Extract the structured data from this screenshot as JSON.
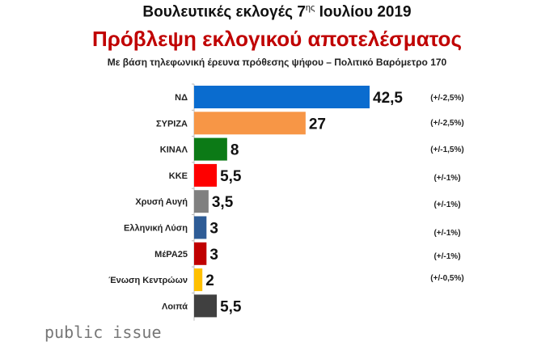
{
  "title": "Βουλευτικές εκλογές 7",
  "title_sup": "ης",
  "title_end": " Ιουλίου 2019",
  "subtitle": "Πρόβλεψη εκλογικού αποτελέσματος",
  "note": "Με βάση τηλεφωνική έρευνα πρόθεσης ψήφου – Πολιτικό Βαρόμετρο 170",
  "logo": "public issue",
  "chart_data": {
    "type": "bar",
    "orientation": "horizontal",
    "categories": [
      "ΝΔ",
      "ΣΥΡΙΖΑ",
      "ΚΙΝΑΛ",
      "ΚΚΕ",
      "Χρυσή Αυγή",
      "Ελληνική Λύση",
      "ΜέΡΑ25",
      "Ένωση Κεντρώων",
      "Λοιπά"
    ],
    "values": [
      42.5,
      27,
      8,
      5.5,
      3.5,
      3,
      3,
      2,
      5.5
    ],
    "value_labels": [
      "42,5",
      "27",
      "8",
      "5,5",
      "3,5",
      "3",
      "3",
      "2",
      "5,5"
    ],
    "margins": [
      "(+/-2,5%)",
      "(+/-2,5%)",
      "(+/-1,5%)",
      "(+/-1%)",
      "(+/-1%)",
      "(+/-1%)",
      "(+/-1%)",
      "(+/-0,5%)",
      ""
    ],
    "colors": [
      "#0a6ccf",
      "#f79646",
      "#0c7a16",
      "#fe0000",
      "#808080",
      "#2e5c96",
      "#c00000",
      "#ffc000",
      "#404040"
    ],
    "xlim": [
      0,
      42.5
    ],
    "grid": false
  }
}
